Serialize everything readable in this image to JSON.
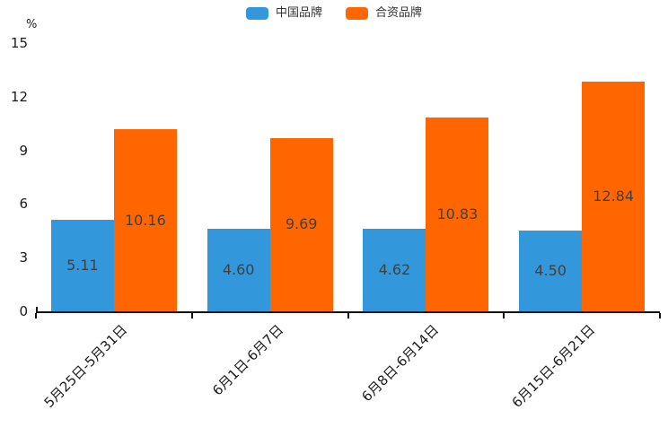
{
  "legend": {
    "items": [
      {
        "label": "中国品牌",
        "color": "#3398DB"
      },
      {
        "label": "合资品牌",
        "color": "#FF6600"
      }
    ]
  },
  "chart_data": {
    "type": "bar",
    "categories": [
      "5月25日-5月31日",
      "6月1日-6月7日",
      "6月8日-6月14日",
      "6月15日-6月21日"
    ],
    "series": [
      {
        "name": "中国品牌",
        "color": "#3398DB",
        "values": [
          5.11,
          4.6,
          4.62,
          4.5
        ]
      },
      {
        "name": "合资品牌",
        "color": "#FF6600",
        "values": [
          10.16,
          9.69,
          10.83,
          12.84
        ]
      }
    ],
    "title": "",
    "xlabel": "",
    "ylabel": "%",
    "ylim": [
      0,
      15
    ],
    "yticks": [
      0,
      3,
      6,
      9,
      12,
      15
    ],
    "grid": false,
    "legend_position": "top-center",
    "value_labels": "inside-center",
    "value_label_format": "2-decimals",
    "xlabel_rotation_deg": 45
  }
}
